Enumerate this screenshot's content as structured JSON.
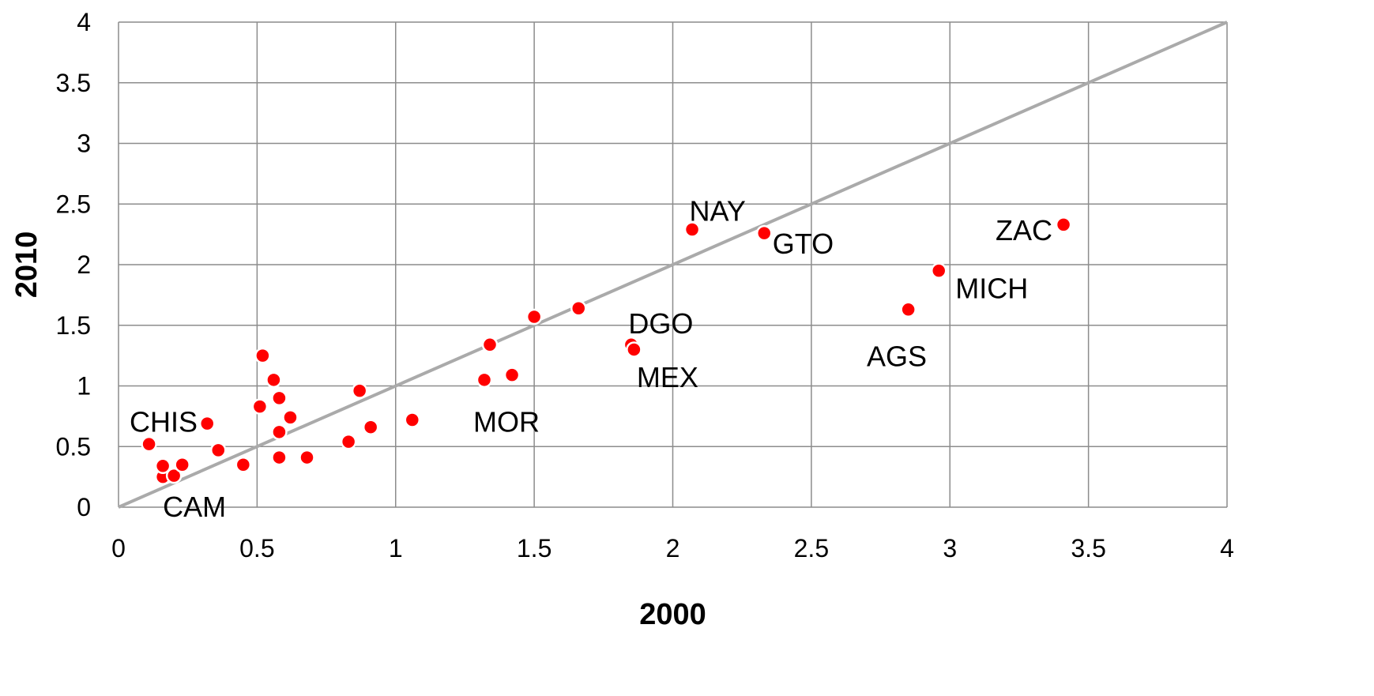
{
  "chart_data": {
    "type": "scatter",
    "title": "",
    "xlabel": "2000",
    "ylabel": "2010",
    "xlim": [
      0,
      4
    ],
    "ylim": [
      0,
      4
    ],
    "x_ticks": [
      "0",
      "0.5",
      "1",
      "1.5",
      "2",
      "2.5",
      "3",
      "3.5",
      "4"
    ],
    "y_ticks": [
      "0",
      "0.5",
      "1",
      "1.5",
      "2",
      "2.5",
      "3",
      "3.5",
      "4"
    ],
    "grid": true,
    "reference_line": {
      "from": [
        0,
        0
      ],
      "to": [
        4,
        4
      ],
      "color": "#aaaaaa"
    },
    "point_color": "#ff0000",
    "points": [
      {
        "x": 0.11,
        "y": 0.52
      },
      {
        "x": 0.16,
        "y": 0.25
      },
      {
        "x": 0.16,
        "y": 0.34
      },
      {
        "x": 0.2,
        "y": 0.26
      },
      {
        "x": 0.23,
        "y": 0.35
      },
      {
        "x": 0.32,
        "y": 0.69
      },
      {
        "x": 0.36,
        "y": 0.47
      },
      {
        "x": 0.45,
        "y": 0.35
      },
      {
        "x": 0.51,
        "y": 0.83
      },
      {
        "x": 0.52,
        "y": 1.25
      },
      {
        "x": 0.56,
        "y": 1.05
      },
      {
        "x": 0.58,
        "y": 0.9
      },
      {
        "x": 0.58,
        "y": 0.62
      },
      {
        "x": 0.58,
        "y": 0.41
      },
      {
        "x": 0.62,
        "y": 0.74
      },
      {
        "x": 0.68,
        "y": 0.41
      },
      {
        "x": 0.83,
        "y": 0.54
      },
      {
        "x": 0.87,
        "y": 0.96
      },
      {
        "x": 0.91,
        "y": 0.66
      },
      {
        "x": 1.06,
        "y": 0.72
      },
      {
        "x": 1.32,
        "y": 1.05
      },
      {
        "x": 1.34,
        "y": 1.34
      },
      {
        "x": 1.42,
        "y": 1.09
      },
      {
        "x": 1.5,
        "y": 1.57
      },
      {
        "x": 1.66,
        "y": 1.64
      },
      {
        "x": 1.85,
        "y": 1.34
      },
      {
        "x": 1.86,
        "y": 1.3
      },
      {
        "x": 2.07,
        "y": 2.29
      },
      {
        "x": 2.33,
        "y": 2.26
      },
      {
        "x": 2.85,
        "y": 1.63
      },
      {
        "x": 2.96,
        "y": 1.95
      },
      {
        "x": 3.41,
        "y": 2.33
      }
    ],
    "annotations": [
      {
        "text": "CHIS",
        "x": 0.04,
        "y": 0.7,
        "anchor": "start"
      },
      {
        "text": "CAM",
        "x": 0.16,
        "y": 0.0,
        "anchor": "start"
      },
      {
        "text": "MOR",
        "x": 1.28,
        "y": 0.7,
        "anchor": "start"
      },
      {
        "text": "DGO",
        "x": 1.84,
        "y": 1.51,
        "anchor": "start"
      },
      {
        "text": "MEX",
        "x": 1.87,
        "y": 1.07,
        "anchor": "start"
      },
      {
        "text": "NAY",
        "x": 2.06,
        "y": 2.44,
        "anchor": "start"
      },
      {
        "text": "GTO",
        "x": 2.36,
        "y": 2.17,
        "anchor": "start"
      },
      {
        "text": "AGS",
        "x": 2.7,
        "y": 1.24,
        "anchor": "start"
      },
      {
        "text": "MICH",
        "x": 3.02,
        "y": 1.8,
        "anchor": "start"
      },
      {
        "text": "ZAC",
        "x": 3.37,
        "y": 2.28,
        "anchor": "end"
      }
    ]
  }
}
